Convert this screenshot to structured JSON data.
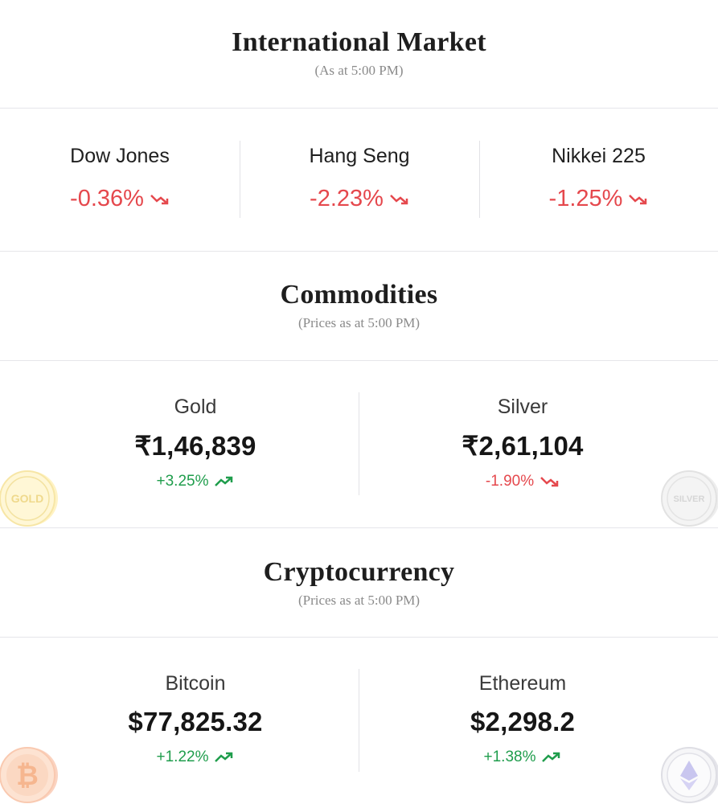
{
  "international": {
    "title": "International Market",
    "subtitle": "(As at 5:00 PM)",
    "indices": [
      {
        "name": "Dow Jones",
        "change": "-0.36%",
        "direction": "down"
      },
      {
        "name": "Hang Seng",
        "change": "-2.23%",
        "direction": "down"
      },
      {
        "name": "Nikkei 225",
        "change": "-1.25%",
        "direction": "down"
      }
    ]
  },
  "commodities": {
    "title": "Commodities",
    "subtitle": "(Prices as at 5:00 PM)",
    "items": [
      {
        "name": "Gold",
        "price": "₹1,46,839",
        "change": "+3.25%",
        "direction": "up",
        "coin_label": "GOLD"
      },
      {
        "name": "Silver",
        "price": "₹2,61,104",
        "change": "-1.90%",
        "direction": "down",
        "coin_label": "SILVER"
      }
    ]
  },
  "crypto": {
    "title": "Cryptocurrency",
    "subtitle": "(Prices as at 5:00 PM)",
    "items": [
      {
        "name": "Bitcoin",
        "price": "$77,825.32",
        "change": "+1.22%",
        "direction": "up",
        "icon": "bitcoin-coin-icon"
      },
      {
        "name": "Ethereum",
        "price": "$2,298.2",
        "change": "+1.38%",
        "direction": "up",
        "icon": "ethereum-coin-icon"
      }
    ]
  },
  "colors": {
    "up": "#1f9d4c",
    "down": "#e5484d",
    "divider": "#e6e6ea"
  }
}
